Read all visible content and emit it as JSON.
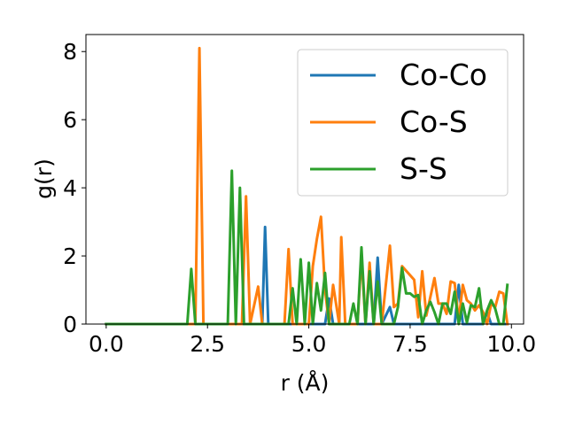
{
  "chart_data": {
    "type": "line",
    "xlabel": "r (Å)",
    "ylabel": "g(r)",
    "xlim": [
      -0.5,
      10.3
    ],
    "ylim": [
      0,
      8.5
    ],
    "xticks": [
      0.0,
      2.5,
      5.0,
      7.5,
      10.0
    ],
    "xtick_labels": [
      "0.0",
      "2.5",
      "5.0",
      "7.5",
      "10.0"
    ],
    "yticks": [
      0,
      2,
      4,
      6,
      8
    ],
    "ytick_labels": [
      "0",
      "2",
      "4",
      "6",
      "8"
    ],
    "grid": false,
    "legend_position": "top-right",
    "series": [
      {
        "name": "Co-Co",
        "color": "#1f77b4",
        "x": [
          0.0,
          2.0,
          3.85,
          3.92,
          4.0,
          4.1,
          5.4,
          5.5,
          5.6,
          6.6,
          6.7,
          6.8,
          7.0,
          7.1,
          8.6,
          8.7,
          8.8,
          9.3,
          9.4,
          9.5,
          9.9
        ],
        "y": [
          0,
          0,
          0,
          2.85,
          0,
          0,
          0,
          0.75,
          0,
          0,
          1.95,
          0,
          0.5,
          0,
          0,
          1.15,
          0,
          0,
          0.35,
          0,
          0
        ]
      },
      {
        "name": "Co-S",
        "color": "#ff7f0e",
        "x": [
          0.0,
          2.2,
          2.3,
          2.4,
          3.35,
          3.45,
          3.55,
          3.75,
          3.85,
          3.95,
          4.4,
          4.5,
          4.6,
          5.0,
          5.1,
          5.2,
          5.3,
          5.4,
          5.5,
          5.6,
          5.75,
          5.8,
          5.9,
          6.2,
          6.3,
          6.4,
          6.5,
          6.6,
          6.7,
          6.8,
          7.0,
          7.1,
          7.2,
          7.3,
          7.6,
          7.7,
          7.8,
          7.9,
          8.1,
          8.2,
          8.3,
          8.4,
          8.5,
          8.6,
          8.7,
          8.8,
          8.9,
          9.0,
          9.1,
          9.2,
          9.3,
          9.4,
          9.5,
          9.6,
          9.7,
          9.8,
          9.9
        ],
        "y": [
          0,
          0,
          8.1,
          0,
          0,
          3.75,
          0,
          1.1,
          0,
          0,
          0,
          2.2,
          0,
          0,
          1.7,
          2.5,
          3.15,
          1.0,
          0,
          1.15,
          0,
          2.55,
          0,
          0,
          2.0,
          0,
          1.8,
          0,
          0,
          0,
          2.3,
          0.5,
          0.6,
          1.7,
          1.3,
          0.2,
          1.55,
          0.25,
          1.35,
          0.6,
          0.6,
          0.3,
          1.25,
          1.2,
          0.1,
          1.15,
          0.7,
          0.6,
          0.4,
          0.55,
          0.35,
          0,
          0.6,
          0.5,
          0.95,
          0.9,
          0
        ]
      },
      {
        "name": "S-S",
        "color": "#2ca02c",
        "x": [
          0.0,
          2.0,
          2.1,
          2.2,
          3.0,
          3.1,
          3.2,
          3.3,
          3.4,
          4.5,
          4.6,
          4.7,
          4.8,
          4.9,
          5.0,
          5.1,
          5.2,
          5.3,
          5.4,
          5.5,
          5.6,
          6.0,
          6.1,
          6.2,
          6.3,
          6.4,
          6.5,
          6.6,
          6.7,
          6.8,
          7.1,
          7.2,
          7.3,
          7.4,
          7.5,
          7.6,
          7.7,
          7.8,
          7.9,
          8.0,
          8.1,
          8.2,
          8.3,
          8.4,
          8.5,
          8.6,
          8.7,
          8.8,
          8.9,
          9.0,
          9.1,
          9.2,
          9.3,
          9.4,
          9.5,
          9.6,
          9.7,
          9.8,
          9.9
        ],
        "y": [
          0,
          0,
          1.62,
          0,
          0,
          4.5,
          0,
          4.0,
          0,
          0,
          1.05,
          0,
          1.9,
          0,
          1.8,
          0,
          1.2,
          0.4,
          1.5,
          0,
          0,
          0,
          0.6,
          0,
          2.25,
          0,
          1.55,
          0,
          1.25,
          0,
          0,
          0.5,
          1.65,
          0.9,
          0.9,
          0.8,
          0.85,
          0,
          0.4,
          0.65,
          0.35,
          0,
          0.6,
          0.6,
          0.3,
          0.95,
          0,
          0.6,
          0.05,
          0.55,
          0.5,
          1.05,
          0,
          0.4,
          0.7,
          0.45,
          0,
          0,
          1.15
        ]
      }
    ]
  }
}
